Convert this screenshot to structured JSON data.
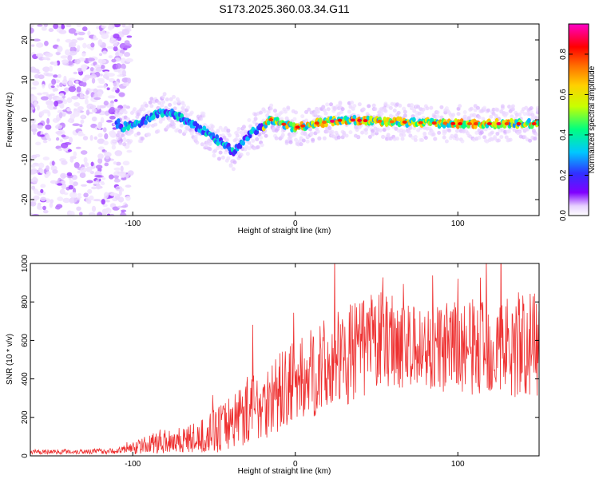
{
  "title": "S173.2025.360.03.34.G11",
  "chart_data": [
    {
      "type": "heatmap",
      "xlabel": "Height of straight line (km)",
      "ylabel": "Frequency (Hz)",
      "xlim": [
        -163,
        150
      ],
      "ylim": [
        -24,
        24
      ],
      "xticks": [
        -100,
        0,
        100
      ],
      "xtick_labels": [
        "-100",
        "0",
        "100"
      ],
      "yticks": [
        -20,
        -10,
        0,
        10,
        20
      ],
      "ytick_labels": [
        "-20",
        "-10",
        "0",
        "10",
        "20"
      ],
      "colorbar": {
        "label": "Normalized spectral amplitude",
        "range": [
          0,
          0.95
        ],
        "ticks": [
          0.0,
          0.2,
          0.4,
          0.6,
          0.8
        ],
        "tick_labels": [
          "0.0",
          "0.2",
          "0.4",
          "0.6",
          "0.8"
        ],
        "colormap": [
          "#ffffff",
          "#e7d0ff",
          "#8000ff",
          "#3030ff",
          "#00c8ff",
          "#00ff80",
          "#c8ff00",
          "#ffd000",
          "#ff7000",
          "#ff0000",
          "#ff00c8"
        ]
      },
      "ridge_frequency_hz": [
        {
          "x": -108,
          "f": -2
        },
        {
          "x": -95,
          "f": -1
        },
        {
          "x": -88,
          "f": 1
        },
        {
          "x": -80,
          "f": 2
        },
        {
          "x": -72,
          "f": 1
        },
        {
          "x": -65,
          "f": -1
        },
        {
          "x": -55,
          "f": -3
        },
        {
          "x": -45,
          "f": -6
        },
        {
          "x": -38,
          "f": -8
        },
        {
          "x": -33,
          "f": -6
        },
        {
          "x": -27,
          "f": -3
        },
        {
          "x": -20,
          "f": -2
        },
        {
          "x": -15,
          "f": 0
        },
        {
          "x": -8,
          "f": -1
        },
        {
          "x": 0,
          "f": -2
        },
        {
          "x": 10,
          "f": -1
        },
        {
          "x": 30,
          "f": 0
        },
        {
          "x": 60,
          "f": -0.5
        },
        {
          "x": 100,
          "f": -1
        },
        {
          "x": 150,
          "f": -1
        }
      ]
    },
    {
      "type": "line",
      "xlabel": "Height of straight line (km)",
      "ylabel": "SNR (10 * v/v)",
      "xlim": [
        -163,
        150
      ],
      "ylim": [
        0,
        1000
      ],
      "xticks": [
        -100,
        0,
        100
      ],
      "xtick_labels": [
        "-100",
        "0",
        "100"
      ],
      "yticks": [
        0,
        200,
        400,
        600,
        800,
        1000
      ],
      "ytick_labels": [
        "0",
        "200",
        "400",
        "600",
        "800",
        "1000"
      ],
      "color": "#ee3030",
      "envelope": [
        {
          "x": -163,
          "mean": 20,
          "spread": 12
        },
        {
          "x": -110,
          "mean": 25,
          "spread": 15
        },
        {
          "x": -95,
          "mean": 50,
          "spread": 40
        },
        {
          "x": -80,
          "mean": 80,
          "spread": 70
        },
        {
          "x": -60,
          "mean": 90,
          "spread": 80
        },
        {
          "x": -45,
          "mean": 150,
          "spread": 130
        },
        {
          "x": -30,
          "mean": 240,
          "spread": 180
        },
        {
          "x": -15,
          "mean": 300,
          "spread": 200
        },
        {
          "x": 0,
          "mean": 380,
          "spread": 220
        },
        {
          "x": 20,
          "mean": 470,
          "spread": 250
        },
        {
          "x": 40,
          "mean": 560,
          "spread": 260
        },
        {
          "x": 60,
          "mean": 620,
          "spread": 260
        },
        {
          "x": 70,
          "mean": 560,
          "spread": 220
        },
        {
          "x": 90,
          "mean": 560,
          "spread": 230
        },
        {
          "x": 110,
          "mean": 560,
          "spread": 260
        },
        {
          "x": 130,
          "mean": 580,
          "spread": 280
        },
        {
          "x": 150,
          "mean": 570,
          "spread": 280
        }
      ]
    }
  ]
}
